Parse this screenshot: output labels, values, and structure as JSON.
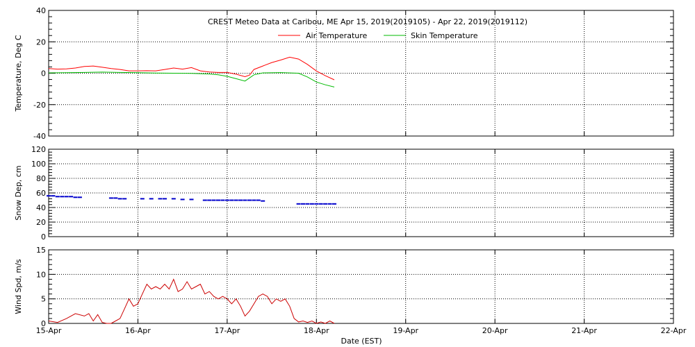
{
  "title": "CREST Meteo Data at Caribou, ME   Apr 15, 2019(2019105) - Apr 22, 2019(2019112)",
  "xlabel": "Date (EST)",
  "x_ticks": [
    "15-Apr",
    "16-Apr",
    "17-Apr",
    "18-Apr",
    "19-Apr",
    "20-Apr",
    "21-Apr",
    "22-Apr"
  ],
  "chart_data": [
    {
      "type": "line",
      "ylabel": "Temperature, Deg C",
      "ylim": [
        -40,
        40
      ],
      "y_ticks": [
        -40,
        -20,
        0,
        20,
        40
      ],
      "xlim": [
        0,
        7
      ],
      "grid": true,
      "legend": "top-center",
      "series": [
        {
          "name": "Air Temperature",
          "color": "#ff0000",
          "x": [
            0,
            0.1,
            0.2,
            0.3,
            0.4,
            0.5,
            0.6,
            0.7,
            0.8,
            0.9,
            1.0,
            1.1,
            1.2,
            1.3,
            1.4,
            1.5,
            1.6,
            1.7,
            1.8,
            1.9,
            2.0,
            2.1,
            2.2,
            2.25,
            2.3,
            2.4,
            2.5,
            2.6,
            2.7,
            2.8,
            2.9,
            3.0,
            3.1,
            3.2
          ],
          "y": [
            3,
            2.6,
            2.8,
            3.3,
            4.3,
            4.6,
            3.8,
            3,
            2.4,
            1.5,
            1.5,
            1.6,
            1.5,
            2.4,
            3.3,
            2.6,
            3.6,
            1.5,
            0.8,
            0.5,
            0.5,
            -0.6,
            -2.2,
            -1.2,
            2.4,
            4.6,
            6.8,
            8.4,
            10.2,
            9,
            5.6,
            1.4,
            -1.6,
            -4.2
          ]
        },
        {
          "name": "Skin Temperature",
          "color": "#00bb00",
          "x": [
            0,
            0.2,
            0.4,
            0.6,
            0.8,
            1.0,
            1.2,
            1.4,
            1.6,
            1.8,
            1.9,
            2.0,
            2.1,
            2.2,
            2.3,
            2.4,
            2.6,
            2.8,
            2.9,
            3.0,
            3.1,
            3.2
          ],
          "y": [
            0.2,
            0.3,
            0.5,
            0.7,
            0.5,
            0.3,
            0.1,
            0,
            -0.1,
            -0.5,
            -1,
            -2,
            -3.5,
            -5,
            -1,
            0.2,
            0.4,
            0,
            -2.4,
            -5.6,
            -7.4,
            -8.8
          ]
        }
      ]
    },
    {
      "type": "scatter",
      "ylabel": "Snow Dep, cm",
      "ylim": [
        0,
        120
      ],
      "y_ticks": [
        0,
        20,
        40,
        60,
        80,
        100,
        120
      ],
      "xlim": [
        0,
        7
      ],
      "grid": true,
      "series": [
        {
          "name": "",
          "color": "#0000cc",
          "x": [
            0,
            0.05,
            0.1,
            0.15,
            0.2,
            0.25,
            0.3,
            0.35,
            0.7,
            0.75,
            0.8,
            0.85,
            1.05,
            1.15,
            1.25,
            1.3,
            1.4,
            1.5,
            1.6,
            1.75,
            1.8,
            1.85,
            1.9,
            1.95,
            2.0,
            2.05,
            2.1,
            2.15,
            2.2,
            2.25,
            2.3,
            2.35,
            2.4,
            2.8,
            2.85,
            2.9,
            2.95,
            3.0,
            3.05,
            3.1,
            3.15,
            3.2
          ],
          "y": [
            56,
            56,
            55,
            55,
            55,
            55,
            54,
            54,
            53,
            53,
            52,
            52,
            52,
            52,
            52,
            52,
            52,
            51,
            51,
            50,
            50,
            50,
            50,
            50,
            50,
            50,
            50,
            50,
            50,
            50,
            50,
            50,
            49,
            45,
            45,
            45,
            45,
            45,
            45,
            45,
            45,
            45
          ]
        }
      ]
    },
    {
      "type": "line",
      "ylabel": "Wind Spd, m/s",
      "ylim": [
        0,
        15
      ],
      "y_ticks": [
        0,
        5,
        10,
        15
      ],
      "xlim": [
        0,
        7
      ],
      "grid": true,
      "series": [
        {
          "name": "",
          "color": "#cc0000",
          "x": [
            0,
            0.1,
            0.2,
            0.3,
            0.4,
            0.45,
            0.5,
            0.55,
            0.6,
            0.65,
            0.7,
            0.75,
            0.8,
            0.85,
            0.9,
            0.95,
            1.0,
            1.05,
            1.1,
            1.15,
            1.2,
            1.25,
            1.3,
            1.35,
            1.4,
            1.45,
            1.5,
            1.55,
            1.6,
            1.65,
            1.7,
            1.75,
            1.8,
            1.85,
            1.9,
            1.95,
            2.0,
            2.05,
            2.1,
            2.15,
            2.2,
            2.25,
            2.3,
            2.35,
            2.4,
            2.45,
            2.5,
            2.55,
            2.6,
            2.65,
            2.7,
            2.75,
            2.8,
            2.85,
            2.9,
            2.95,
            3.0,
            3.05,
            3.1,
            3.15,
            3.2
          ],
          "y": [
            0.5,
            0.2,
            1,
            2,
            1.5,
            2,
            0.5,
            1.8,
            0.2,
            0,
            0,
            0.5,
            1,
            3,
            5,
            3.5,
            4,
            6,
            8,
            7,
            7.5,
            7,
            8,
            7,
            9,
            6.5,
            7,
            8.5,
            7,
            7.5,
            8,
            6,
            6.5,
            5.5,
            5,
            5.5,
            5,
            4,
            5,
            3.5,
            1.5,
            2.5,
            4,
            5.5,
            6,
            5.5,
            4,
            5,
            4.5,
            5,
            3.5,
            1,
            0.3,
            0.5,
            0.2,
            0.5,
            0,
            0.3,
            0,
            0.5,
            0
          ]
        }
      ]
    }
  ]
}
